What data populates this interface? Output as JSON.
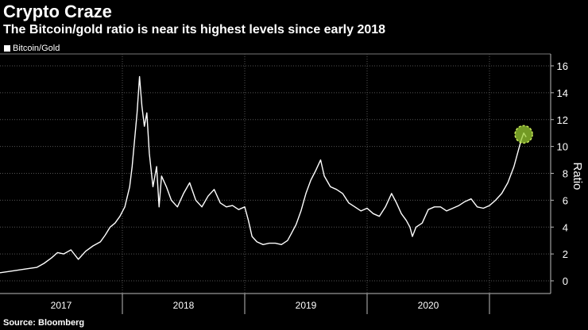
{
  "header": {
    "title": "Crypto Craze",
    "subtitle": "The Bitcoin/gold ratio is near its highest levels since early 2018"
  },
  "legend": {
    "label": "Bitcoin/Gold"
  },
  "footer": {
    "source": "Source: Bloomberg"
  },
  "colors": {
    "background": "#000000",
    "line": "#ffffff",
    "grid": "#555555",
    "highlight": "#9acd32"
  },
  "chart_data": {
    "type": "line",
    "title": "Crypto Craze",
    "subtitle": "The Bitcoin/gold ratio is near its highest levels since early 2018",
    "xlabel": "",
    "ylabel": "Ratio",
    "ylim": [
      0,
      16
    ],
    "yticks": [
      0,
      2,
      4,
      6,
      8,
      10,
      12,
      14,
      16
    ],
    "xlim": [
      2016.5,
      2021.0
    ],
    "xticks": [
      {
        "label": "2017",
        "at": 2017.0,
        "divider": 2017.5
      },
      {
        "label": "2018",
        "at": 2018.0,
        "divider": 2018.5
      },
      {
        "label": "2019",
        "at": 2019.0,
        "divider": 2019.5
      },
      {
        "label": "2020",
        "at": 2020.0,
        "divider": 2020.5
      }
    ],
    "grid": true,
    "legend_position": "top-left",
    "series": [
      {
        "name": "Bitcoin/Gold",
        "points": [
          [
            2016.5,
            0.6
          ],
          [
            2016.58,
            0.7
          ],
          [
            2016.65,
            0.8
          ],
          [
            2016.72,
            0.9
          ],
          [
            2016.8,
            1.0
          ],
          [
            2016.86,
            1.3
          ],
          [
            2016.92,
            1.7
          ],
          [
            2016.97,
            2.1
          ],
          [
            2017.02,
            2.0
          ],
          [
            2017.08,
            2.3
          ],
          [
            2017.14,
            1.6
          ],
          [
            2017.2,
            2.2
          ],
          [
            2017.26,
            2.6
          ],
          [
            2017.32,
            2.9
          ],
          [
            2017.36,
            3.4
          ],
          [
            2017.4,
            4.0
          ],
          [
            2017.44,
            4.3
          ],
          [
            2017.48,
            4.8
          ],
          [
            2017.52,
            5.5
          ],
          [
            2017.56,
            7.0
          ],
          [
            2017.58,
            8.5
          ],
          [
            2017.6,
            10.5
          ],
          [
            2017.62,
            12.5
          ],
          [
            2017.64,
            15.2
          ],
          [
            2017.66,
            13.0
          ],
          [
            2017.68,
            11.5
          ],
          [
            2017.7,
            12.5
          ],
          [
            2017.72,
            9.5
          ],
          [
            2017.75,
            7.0
          ],
          [
            2017.78,
            8.5
          ],
          [
            2017.8,
            5.5
          ],
          [
            2017.82,
            7.8
          ],
          [
            2017.86,
            7.0
          ],
          [
            2017.9,
            6.0
          ],
          [
            2017.95,
            5.5
          ],
          [
            2018.0,
            6.5
          ],
          [
            2018.05,
            7.3
          ],
          [
            2018.1,
            6.0
          ],
          [
            2018.15,
            5.5
          ],
          [
            2018.2,
            6.3
          ],
          [
            2018.25,
            6.8
          ],
          [
            2018.3,
            5.8
          ],
          [
            2018.35,
            5.5
          ],
          [
            2018.4,
            5.6
          ],
          [
            2018.45,
            5.3
          ],
          [
            2018.5,
            5.5
          ],
          [
            2018.53,
            4.5
          ],
          [
            2018.56,
            3.3
          ],
          [
            2018.6,
            2.9
          ],
          [
            2018.65,
            2.7
          ],
          [
            2018.7,
            2.8
          ],
          [
            2018.75,
            2.8
          ],
          [
            2018.8,
            2.7
          ],
          [
            2018.85,
            3.0
          ],
          [
            2018.88,
            3.5
          ],
          [
            2018.92,
            4.2
          ],
          [
            2018.96,
            5.2
          ],
          [
            2019.0,
            6.5
          ],
          [
            2019.04,
            7.5
          ],
          [
            2019.08,
            8.2
          ],
          [
            2019.12,
            9.0
          ],
          [
            2019.15,
            7.8
          ],
          [
            2019.2,
            7.0
          ],
          [
            2019.25,
            6.8
          ],
          [
            2019.3,
            6.5
          ],
          [
            2019.35,
            5.8
          ],
          [
            2019.4,
            5.5
          ],
          [
            2019.45,
            5.2
          ],
          [
            2019.5,
            5.4
          ],
          [
            2019.55,
            5.0
          ],
          [
            2019.6,
            4.8
          ],
          [
            2019.65,
            5.5
          ],
          [
            2019.7,
            6.5
          ],
          [
            2019.74,
            5.8
          ],
          [
            2019.78,
            5.0
          ],
          [
            2019.82,
            4.5
          ],
          [
            2019.85,
            4.0
          ],
          [
            2019.87,
            3.3
          ],
          [
            2019.9,
            4.0
          ],
          [
            2019.95,
            4.3
          ],
          [
            2020.0,
            5.3
          ],
          [
            2020.05,
            5.5
          ],
          [
            2020.1,
            5.5
          ],
          [
            2020.15,
            5.2
          ],
          [
            2020.2,
            5.4
          ],
          [
            2020.25,
            5.6
          ],
          [
            2020.3,
            5.9
          ],
          [
            2020.35,
            6.1
          ],
          [
            2020.4,
            5.5
          ],
          [
            2020.45,
            5.4
          ],
          [
            2020.5,
            5.6
          ],
          [
            2020.55,
            6.0
          ],
          [
            2020.6,
            6.5
          ],
          [
            2020.65,
            7.3
          ],
          [
            2020.7,
            8.5
          ],
          [
            2020.73,
            9.5
          ],
          [
            2020.76,
            10.5
          ],
          [
            2020.78,
            11.0
          ],
          [
            2020.8,
            10.7
          ]
        ]
      }
    ],
    "annotations": [
      {
        "type": "highlight-circle",
        "x": 2020.78,
        "y": 10.9
      }
    ]
  }
}
